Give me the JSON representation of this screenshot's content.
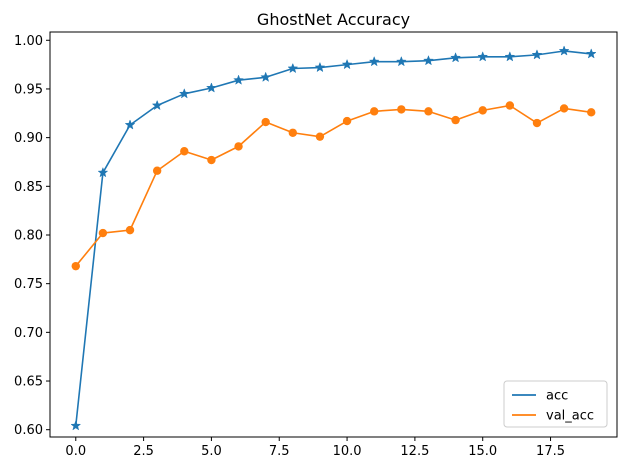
{
  "chart_data": {
    "type": "line",
    "title": "GhostNet Accuracy",
    "xlabel": "",
    "ylabel": "",
    "x": [
      0,
      1,
      2,
      3,
      4,
      5,
      6,
      7,
      8,
      9,
      10,
      11,
      12,
      13,
      14,
      15,
      16,
      17,
      18,
      19
    ],
    "xlim": [
      -0.95,
      19.95
    ],
    "ylim": [
      0.5925,
      1.0085
    ],
    "xticks": [
      0.0,
      2.5,
      5.0,
      7.5,
      10.0,
      12.5,
      15.0,
      17.5
    ],
    "xtick_labels": [
      "0.0",
      "2.5",
      "5.0",
      "7.5",
      "10.0",
      "12.5",
      "15.0",
      "17.5"
    ],
    "yticks": [
      0.6,
      0.65,
      0.7,
      0.75,
      0.8,
      0.85,
      0.9,
      0.95,
      1.0
    ],
    "ytick_labels": [
      "0.60",
      "0.65",
      "0.70",
      "0.75",
      "0.80",
      "0.85",
      "0.90",
      "0.95",
      "1.00"
    ],
    "grid": false,
    "legend_position": "bottom-right",
    "series": [
      {
        "name": "acc",
        "color": "#1f77b4",
        "marker": "star",
        "values": [
          0.604,
          0.864,
          0.913,
          0.933,
          0.945,
          0.951,
          0.959,
          0.962,
          0.971,
          0.972,
          0.975,
          0.978,
          0.978,
          0.979,
          0.982,
          0.983,
          0.983,
          0.985,
          0.989,
          0.986
        ]
      },
      {
        "name": "val_acc",
        "color": "#ff7f0e",
        "marker": "circle",
        "values": [
          0.768,
          0.802,
          0.805,
          0.866,
          0.886,
          0.877,
          0.891,
          0.916,
          0.905,
          0.901,
          0.917,
          0.927,
          0.929,
          0.927,
          0.918,
          0.928,
          0.933,
          0.915,
          0.93,
          0.926
        ]
      }
    ]
  }
}
